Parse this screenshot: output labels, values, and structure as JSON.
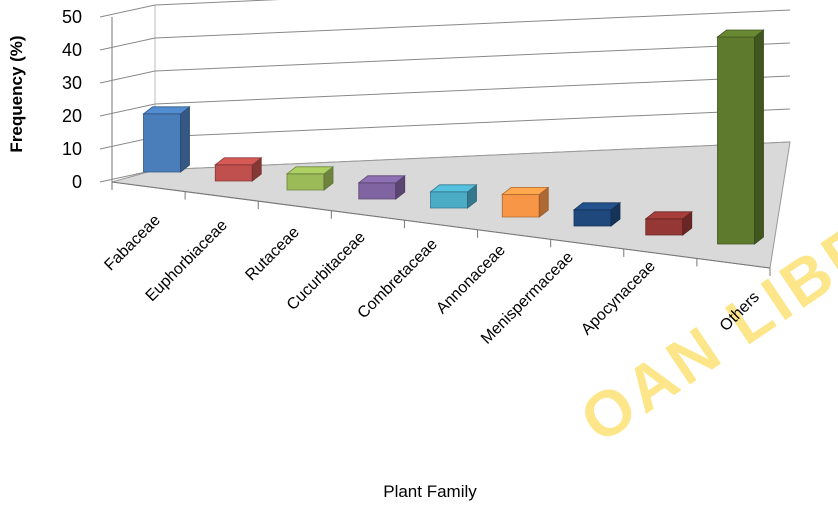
{
  "chart_data": {
    "type": "bar",
    "style": "3d-column",
    "categories": [
      "Fabaceae",
      "Euphorbiaceae",
      "Rutaceae",
      "Cucurbitaceae",
      "Combretaceae",
      "Annonaceae",
      "Menispermaceae",
      "Apocynaceae",
      "Others"
    ],
    "values": [
      18,
      5,
      5,
      5,
      5,
      7,
      5,
      5,
      50
    ],
    "colors": [
      "#4a7ebb",
      "#c0504d",
      "#9bbb59",
      "#8064a2",
      "#4bacc6",
      "#f79646",
      "#1f497d",
      "#953735",
      "#5d7a2d"
    ],
    "xlabel": "Plant Family",
    "ylabel": "Frequency (%)",
    "ylim": [
      0,
      50
    ],
    "yticks": [
      0,
      10,
      20,
      30,
      40,
      50
    ],
    "grid": true
  },
  "watermark": "OAN LIBRARY"
}
